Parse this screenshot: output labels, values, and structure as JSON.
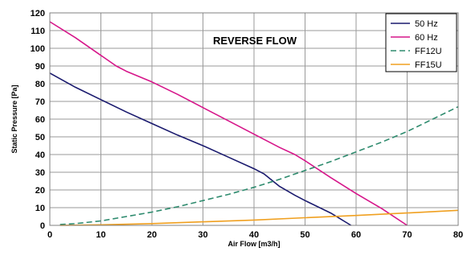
{
  "chart_data": {
    "type": "line",
    "annotation": "REVERSE FLOW",
    "xlabel": "Air Flow [m3/h]",
    "ylabel": "Static Pressure [Pa]",
    "xlim": [
      0,
      80
    ],
    "ylim": [
      0,
      120
    ],
    "x_ticks": [
      0,
      10,
      20,
      30,
      40,
      50,
      60,
      70,
      80
    ],
    "y_ticks": [
      0,
      10,
      20,
      30,
      40,
      50,
      60,
      70,
      80,
      90,
      100,
      110,
      120
    ],
    "grid": true,
    "legend_position": "top-right",
    "series": [
      {
        "name": "50 Hz",
        "color": "#1a1a6e",
        "dash": "solid",
        "x": [
          0,
          5,
          10,
          15,
          20,
          25,
          30,
          35,
          40,
          42,
          45,
          48,
          50,
          55,
          59
        ],
        "y": [
          86,
          78,
          71,
          64,
          57.5,
          51,
          45,
          38.5,
          32,
          29,
          22,
          17,
          14,
          7,
          0
        ]
      },
      {
        "name": "60 Hz",
        "color": "#d6168a",
        "dash": "solid",
        "x": [
          0,
          5,
          10,
          13,
          15,
          20,
          25,
          30,
          35,
          40,
          45,
          48,
          50,
          55,
          60,
          65,
          70
        ],
        "y": [
          115,
          106,
          96,
          90,
          87,
          81,
          74,
          66.5,
          59,
          51.5,
          44,
          40,
          36.5,
          27,
          18,
          9.5,
          0
        ]
      },
      {
        "name": "FF12U",
        "color": "#2e8b6e",
        "dash": "dashed",
        "x": [
          2,
          5,
          10,
          15,
          20,
          25,
          30,
          35,
          40,
          45,
          50,
          55,
          60,
          65,
          70,
          75,
          80
        ],
        "y": [
          0.5,
          1,
          2.5,
          5,
          7.5,
          10.5,
          14,
          17.5,
          21.5,
          26,
          31,
          36,
          41.5,
          47,
          53,
          60,
          67
        ]
      },
      {
        "name": "FF15U",
        "color": "#f0a020",
        "dash": "solid",
        "x": [
          2,
          10,
          20,
          30,
          40,
          50,
          60,
          70,
          80
        ],
        "y": [
          0,
          0.3,
          1,
          2,
          3,
          4.3,
          5.6,
          7,
          8.5
        ]
      }
    ]
  }
}
